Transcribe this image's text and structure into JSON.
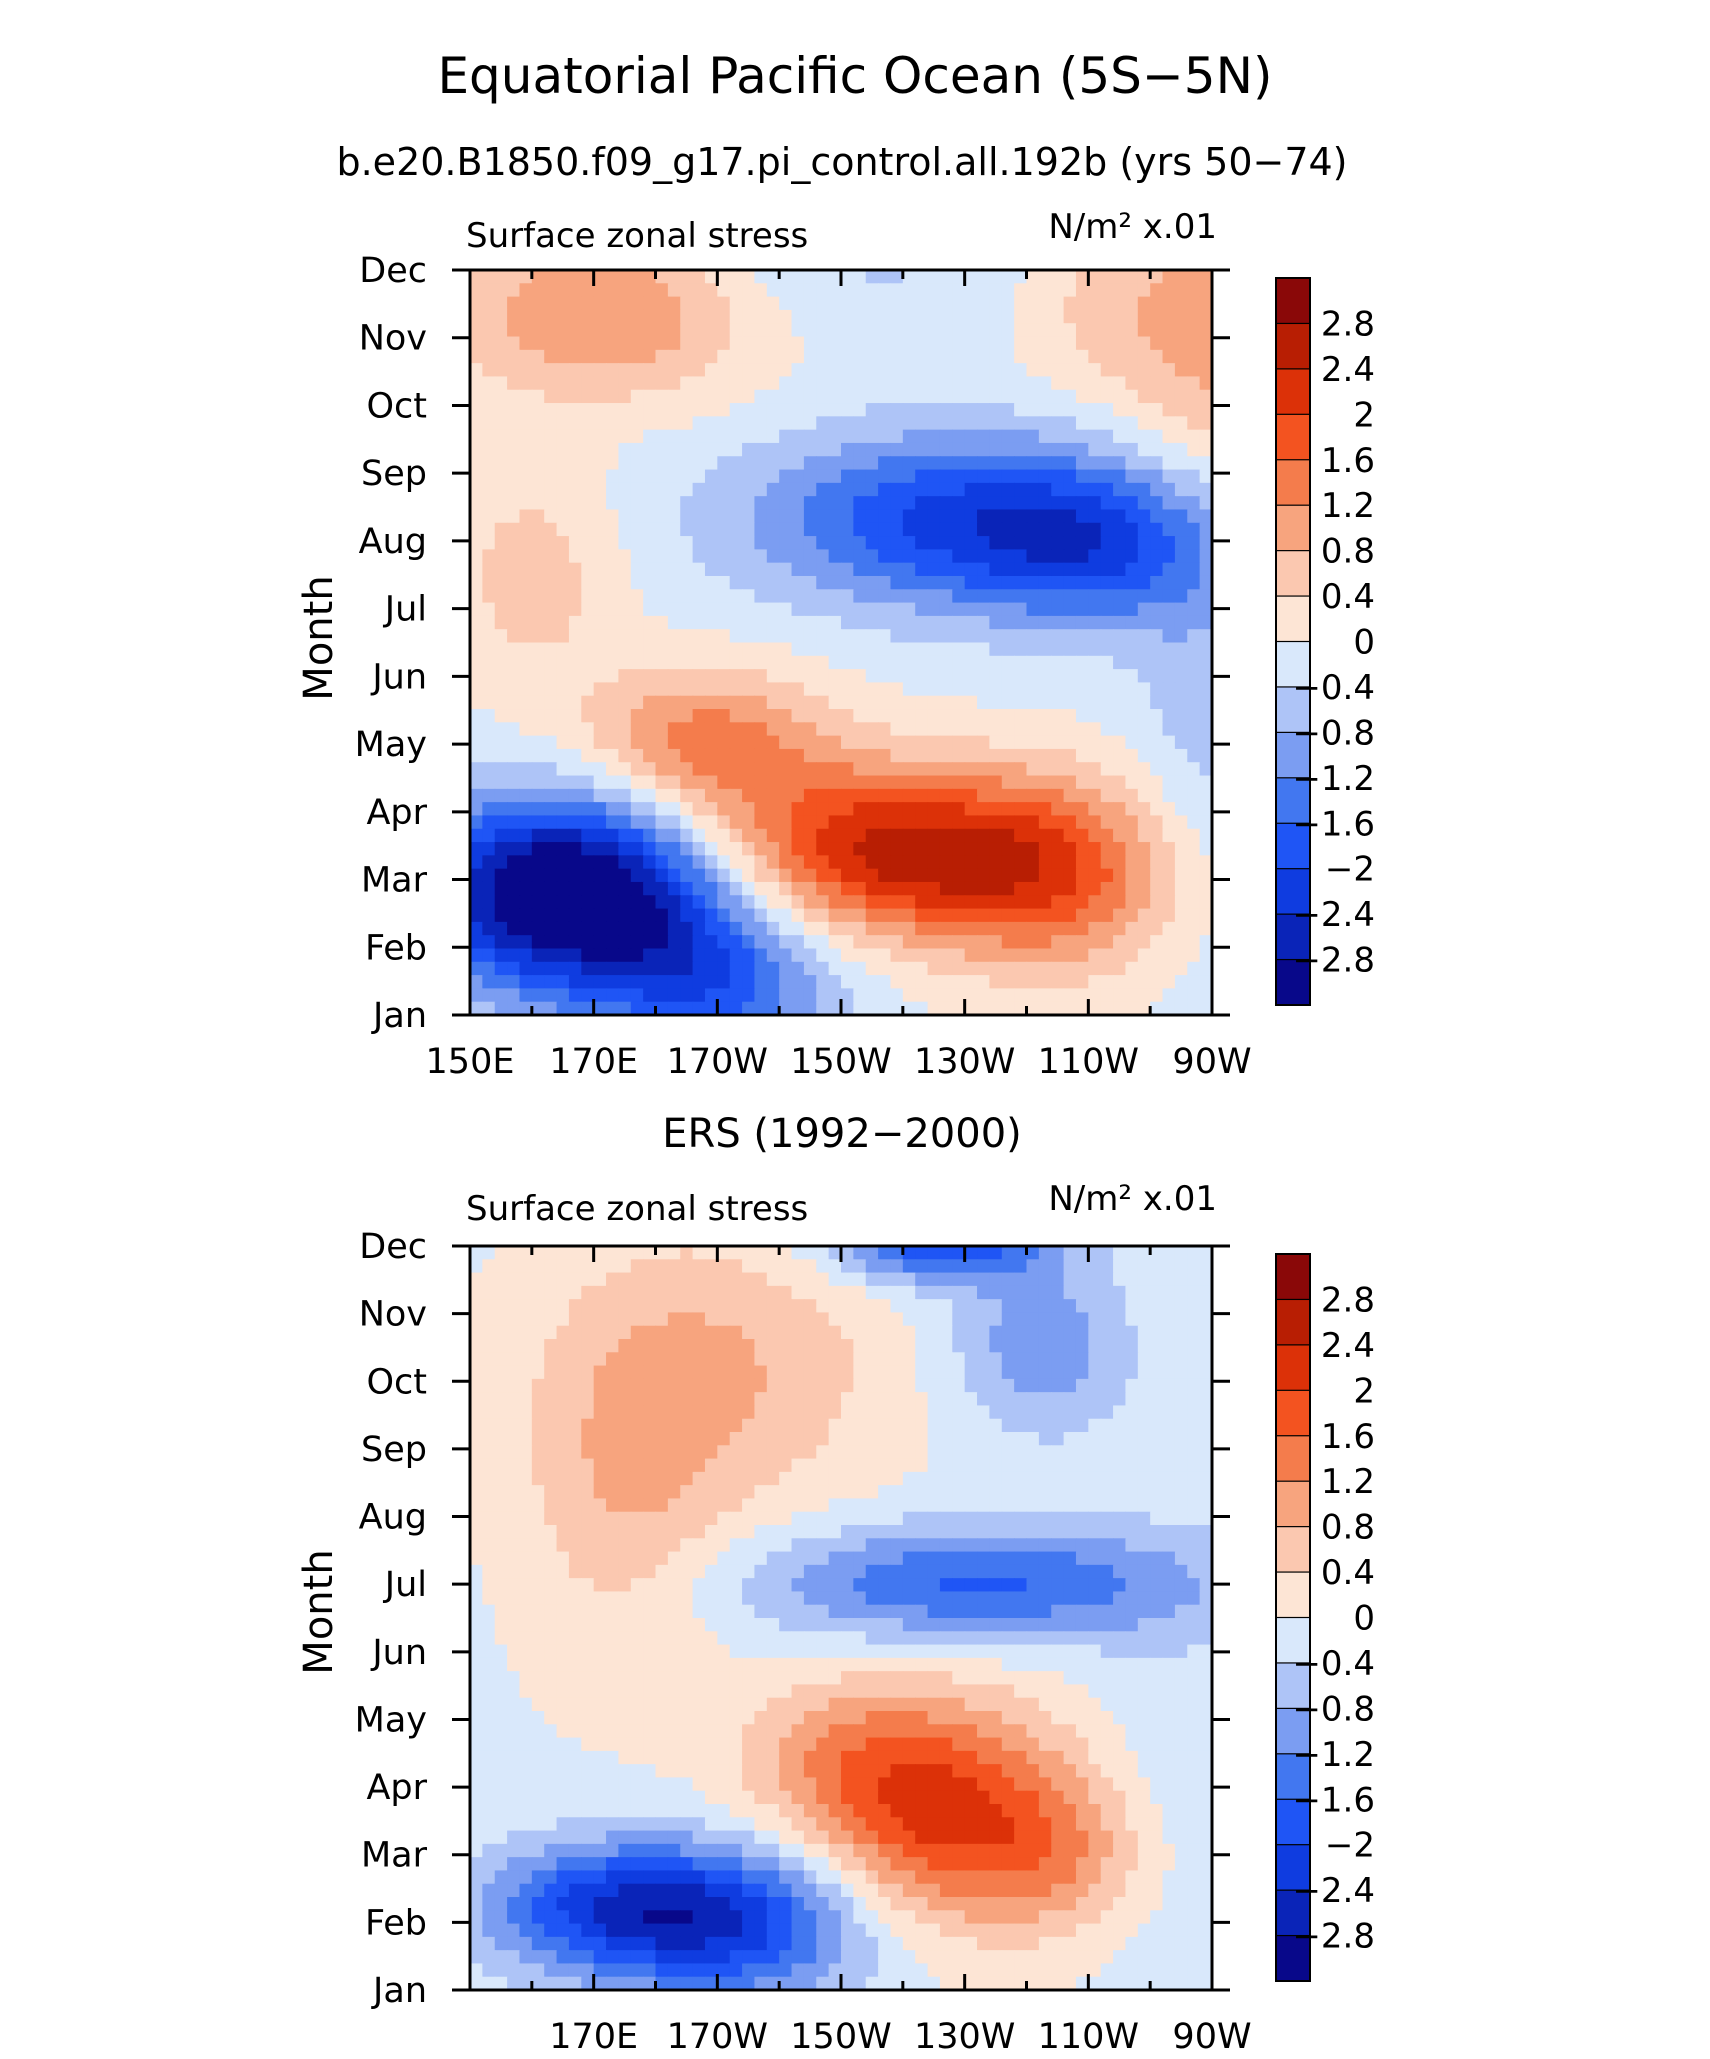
{
  "figure": {
    "title": "Equatorial Pacific Ocean (5S−5N)",
    "subtitle": "b.e20.B1850.f09_g17.pi_control.all.192b (yrs 50−74)"
  },
  "colorbar": {
    "levels": [
      -2.8,
      -2.4,
      -2,
      -1.6,
      -1.2,
      -0.8,
      -0.4,
      0,
      0.4,
      0.8,
      1.2,
      1.6,
      2,
      2.4,
      2.8
    ],
    "labels": [
      "2.8",
      "2.4",
      "2",
      "1.6",
      "1.2",
      "0.8",
      "0.4",
      "0",
      "−0.4",
      "−0.8",
      "−1.2",
      "−1.6",
      "−2",
      "−2.4",
      "−2.8"
    ],
    "colors": [
      "#08088a",
      "#0a24b8",
      "#0f3ce0",
      "#1f55f5",
      "#4277f0",
      "#7b9df2",
      "#aec4f7",
      "#d9e8fb",
      "#fde5d5",
      "#fbc8b0",
      "#f7a47e",
      "#f47c4c",
      "#f35320",
      "#dc3108",
      "#b81e03",
      "#8a0808"
    ]
  },
  "chart_data": [
    {
      "type": "heatmap",
      "title": "",
      "subtitle": "",
      "left_label": "Surface zonal stress",
      "right_label": "N/m² x.01",
      "ylabel": "Month",
      "xlabel": "",
      "x_ticks": [
        "150E",
        "170E",
        "170W",
        "150W",
        "130W",
        "110W",
        "90W"
      ],
      "y_ticks": [
        "Jan",
        "Feb",
        "Mar",
        "Apr",
        "May",
        "Jun",
        "Jul",
        "Aug",
        "Sep",
        "Oct",
        "Nov",
        "Dec"
      ],
      "x_lon": [
        150,
        170,
        190,
        210,
        230,
        250,
        270
      ],
      "xlim": [
        150,
        270
      ],
      "ylim": [
        "Jan",
        "Dec"
      ],
      "field": {
        "base": -0.1,
        "blobs": [
          {
            "lon": 166,
            "month": 1.8,
            "sx": 17,
            "sy": 1.0,
            "amp": -3.6
          },
          {
            "lon": 190,
            "month": 0.5,
            "sx": 14,
            "sy": 0.9,
            "amp": -1.5
          },
          {
            "lon": 218,
            "month": 2.4,
            "sx": 20,
            "sy": 0.9,
            "amp": 2.6
          },
          {
            "lon": 188,
            "month": 4.0,
            "sx": 14,
            "sy": 0.8,
            "amp": 1.5
          },
          {
            "lon": 246,
            "month": 2.0,
            "sx": 14,
            "sy": 1.0,
            "amp": 1.4
          },
          {
            "lon": 230,
            "month": 7.3,
            "sx": 24,
            "sy": 0.9,
            "amp": -2.0
          },
          {
            "lon": 252,
            "month": 6.8,
            "sx": 14,
            "sy": 0.8,
            "amp": -1.1
          },
          {
            "lon": 172,
            "month": 10.4,
            "sx": 18,
            "sy": 0.9,
            "amp": 1.4
          },
          {
            "lon": 270,
            "month": 9.8,
            "sx": 10,
            "sy": 1.8,
            "amp": 1.0
          },
          {
            "lon": 252,
            "month": 10.5,
            "sx": 10,
            "sy": 1.0,
            "amp": 0.6
          },
          {
            "lon": 206,
            "month": 11.0,
            "sx": 24,
            "sy": 0.8,
            "amp": -0.4
          },
          {
            "lon": 160,
            "month": 6.5,
            "sx": 10,
            "sy": 1.2,
            "amp": 0.7
          },
          {
            "lon": 268,
            "month": 4.5,
            "sx": 8,
            "sy": 2.5,
            "amp": -0.5
          }
        ]
      }
    },
    {
      "type": "heatmap",
      "title": "ERS (1992−2000)",
      "subtitle": "",
      "left_label": "Surface zonal stress",
      "right_label": "N/m² x.01",
      "ylabel": "Month",
      "xlabel": "",
      "x_ticks": [
        "170E",
        "170W",
        "150W",
        "130W",
        "110W",
        "90W"
      ],
      "y_ticks": [
        "Jan",
        "Feb",
        "Mar",
        "Apr",
        "May",
        "Jun",
        "Jul",
        "Aug",
        "Sep",
        "Oct",
        "Nov",
        "Dec"
      ],
      "x_lon": [
        170,
        190,
        210,
        230,
        250,
        270
      ],
      "xlim": [
        150,
        270
      ],
      "ylim": [
        "Jan",
        "Dec"
      ],
      "field": {
        "base": -0.1,
        "blobs": [
          {
            "lon": 190,
            "month": 1.0,
            "sx": 18,
            "sy": 0.8,
            "amp": -2.2
          },
          {
            "lon": 170,
            "month": 1.3,
            "sx": 14,
            "sy": 0.6,
            "amp": -1.2
          },
          {
            "lon": 226,
            "month": 2.6,
            "sx": 15,
            "sy": 1.2,
            "amp": 2.2
          },
          {
            "lon": 246,
            "month": 2.0,
            "sx": 10,
            "sy": 0.8,
            "amp": 0.8
          },
          {
            "lon": 208,
            "month": 3.5,
            "sx": 12,
            "sy": 0.8,
            "amp": 0.7
          },
          {
            "lon": 232,
            "month": 6.0,
            "sx": 26,
            "sy": 0.6,
            "amp": -1.6
          },
          {
            "lon": 226,
            "month": 11.0,
            "sx": 12,
            "sy": 0.4,
            "amp": -1.9
          },
          {
            "lon": 242,
            "month": 9.5,
            "sx": 10,
            "sy": 0.9,
            "amp": -1.0
          },
          {
            "lon": 190,
            "month": 9.2,
            "sx": 20,
            "sy": 1.5,
            "amp": 0.9
          },
          {
            "lon": 175,
            "month": 7.0,
            "sx": 12,
            "sy": 1.8,
            "amp": 0.7
          },
          {
            "lon": 262,
            "month": 3.2,
            "sx": 8,
            "sy": 2.5,
            "amp": -0.2
          }
        ]
      }
    }
  ]
}
